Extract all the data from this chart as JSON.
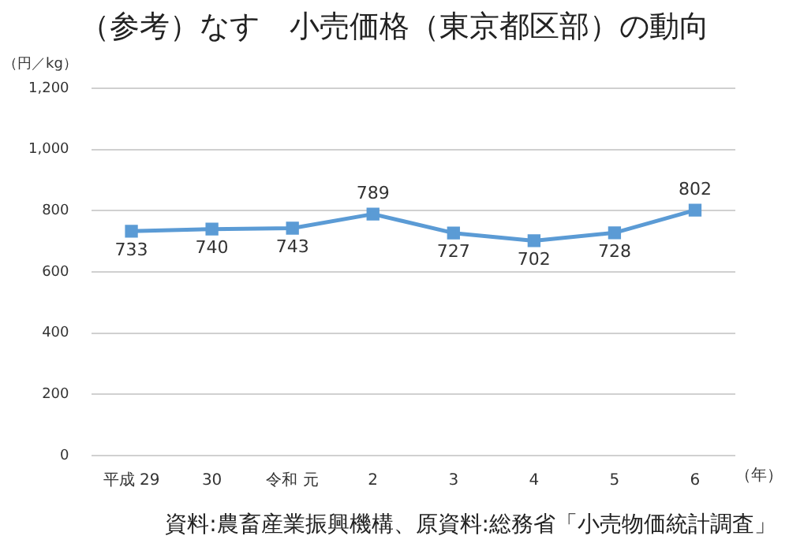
{
  "chart_data": {
    "type": "line",
    "title": "（参考）なす　小売価格（東京都区部）の動向",
    "ylabel": "（円／kg）",
    "xlabel": "（年）",
    "categories": [
      "平成 29",
      "30",
      "令和 元",
      "2",
      "3",
      "4",
      "5",
      "6"
    ],
    "series": [
      {
        "color": "#5b9bd5",
        "values": [
          733,
          740,
          743,
          789,
          727,
          702,
          728,
          802
        ]
      }
    ],
    "ylim": [
      0,
      1200
    ],
    "yticks": [
      0,
      {
        "value": 200,
        "label": "200"
      },
      {
        "value": 400,
        "label": "400"
      },
      {
        "value": 600,
        "label": "600"
      },
      {
        "value": 800,
        "label": "800"
      },
      {
        "value": 1000,
        "label": "1,000"
      },
      {
        "value": 1200,
        "label": "1,200"
      }
    ],
    "grid": "y",
    "legend": false,
    "marker": "square",
    "line_style": "solid",
    "data_labels": true,
    "annotations": [
      "資料:農畜産業振興機構、原資料:総務省「小売物価統計調査」"
    ]
  }
}
